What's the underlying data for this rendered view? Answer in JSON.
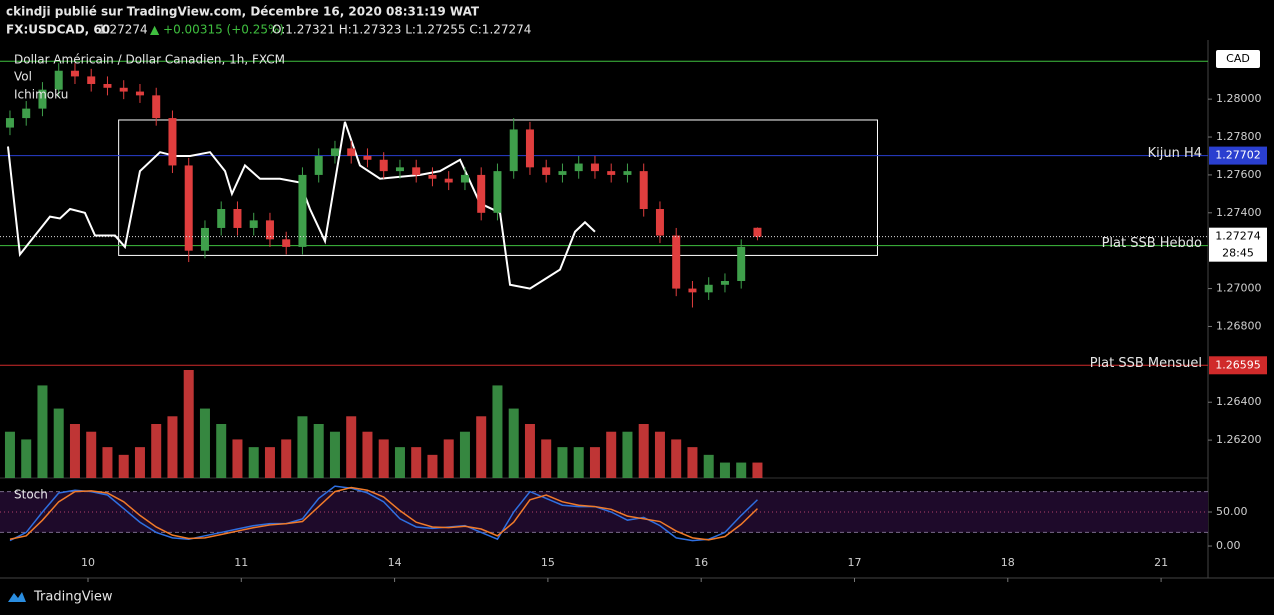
{
  "header": {
    "line1": "ckindji publié sur TradingView.com, Décembre 16, 2020 08:31:19 WAT",
    "symbol": "FX:USDCAD, 60",
    "price": "1.27274",
    "change": "▲ +0.00315 (+0.25%)",
    "ohlc": "O:1.27321 H:1.27323 L:1.27255 C:1.27274"
  },
  "chart_data": {
    "type": "candlestick",
    "title": "Dollar Américain / Dollar Canadien, 1h, FXCM",
    "legend": [
      "Vol",
      "Ichimoku"
    ],
    "currency": "CAD",
    "up_color": "#3f9f4b",
    "down_color": "#e03e3e",
    "xlim": [
      -0.574,
      7.306
    ],
    "xticks": [
      {
        "value": 0,
        "label": "10"
      },
      {
        "value": 1,
        "label": "11"
      },
      {
        "value": 2,
        "label": "14"
      },
      {
        "value": 3,
        "label": "15"
      },
      {
        "value": 4,
        "label": "16"
      },
      {
        "value": 5,
        "label": "17"
      },
      {
        "value": 6,
        "label": "18"
      },
      {
        "value": 7,
        "label": "21"
      }
    ],
    "ylim": [
      1.26,
      1.2827
    ],
    "yticks": [
      {
        "value": 1.28,
        "label": "1.28000"
      },
      {
        "value": 1.278,
        "label": "1.27800"
      },
      {
        "value": 1.276,
        "label": "1.27600"
      },
      {
        "value": 1.274,
        "label": "1.27400"
      },
      {
        "value": 1.27,
        "label": "1.27000"
      },
      {
        "value": 1.268,
        "label": "1.26800"
      },
      {
        "value": 1.264,
        "label": "1.26400"
      },
      {
        "value": 1.262,
        "label": "1.26200"
      }
    ],
    "x": [
      -0.509,
      -0.403,
      -0.297,
      -0.191,
      -0.085,
      0.021,
      0.127,
      0.233,
      0.339,
      0.445,
      0.551,
      0.657,
      0.763,
      0.869,
      0.975,
      1.081,
      1.187,
      1.293,
      1.399,
      1.505,
      1.611,
      1.717,
      1.823,
      1.929,
      2.035,
      2.141,
      2.247,
      2.353,
      2.459,
      2.565,
      2.671,
      2.777,
      2.883,
      2.989,
      3.095,
      3.201,
      3.307,
      3.413,
      3.519,
      3.625,
      3.731,
      3.837,
      3.943,
      4.049,
      4.155,
      4.261,
      4.367
    ],
    "open": [
      1.2785,
      1.279,
      1.2795,
      1.2805,
      1.2815,
      1.2812,
      1.2808,
      1.2806,
      1.2804,
      1.2802,
      1.279,
      1.2765,
      1.272,
      1.2732,
      1.2742,
      1.2732,
      1.2736,
      1.2726,
      1.2722,
      1.276,
      1.277,
      1.2774,
      1.277,
      1.2768,
      1.2762,
      1.2764,
      1.276,
      1.2758,
      1.2756,
      1.276,
      1.274,
      1.2762,
      1.2784,
      1.2764,
      1.276,
      1.2762,
      1.2766,
      1.2762,
      1.276,
      1.2762,
      1.2742,
      1.2728,
      1.27,
      1.2698,
      1.2702,
      1.2704,
      1.27321
    ],
    "high": [
      1.2794,
      1.2799,
      1.2809,
      1.2819,
      1.2819,
      1.2816,
      1.2812,
      1.281,
      1.2808,
      1.2806,
      1.2794,
      1.2769,
      1.2736,
      1.2746,
      1.2746,
      1.274,
      1.274,
      1.273,
      1.2764,
      1.2774,
      1.2778,
      1.2778,
      1.2774,
      1.2772,
      1.2768,
      1.2768,
      1.2764,
      1.2762,
      1.2764,
      1.2764,
      1.2766,
      1.279,
      1.2788,
      1.2768,
      1.2766,
      1.277,
      1.277,
      1.2766,
      1.2766,
      1.2766,
      1.2746,
      1.2732,
      1.2704,
      1.2706,
      1.2708,
      1.2726,
      1.27323
    ],
    "low": [
      1.2781,
      1.2786,
      1.2791,
      1.2801,
      1.2808,
      1.2804,
      1.2802,
      1.28,
      1.2798,
      1.2786,
      1.2761,
      1.2714,
      1.2716,
      1.2728,
      1.2728,
      1.2728,
      1.2722,
      1.2718,
      1.2718,
      1.2756,
      1.2766,
      1.2766,
      1.2764,
      1.2758,
      1.2758,
      1.2756,
      1.2754,
      1.2752,
      1.2752,
      1.2736,
      1.2736,
      1.2758,
      1.276,
      1.2756,
      1.2756,
      1.2758,
      1.2758,
      1.2756,
      1.2756,
      1.2738,
      1.2724,
      1.2696,
      1.269,
      1.2694,
      1.2698,
      1.27,
      1.27255
    ],
    "close": [
      1.279,
      1.2795,
      1.2805,
      1.2815,
      1.2812,
      1.2808,
      1.2806,
      1.2804,
      1.2802,
      1.279,
      1.2765,
      1.272,
      1.2732,
      1.2742,
      1.2732,
      1.2736,
      1.2726,
      1.2722,
      1.276,
      1.277,
      1.2774,
      1.277,
      1.2768,
      1.2762,
      1.2764,
      1.276,
      1.2758,
      1.2756,
      1.276,
      1.274,
      1.2762,
      1.2784,
      1.2764,
      1.276,
      1.2762,
      1.2766,
      1.2762,
      1.276,
      1.2762,
      1.2742,
      1.2728,
      1.27,
      1.2698,
      1.2702,
      1.2704,
      1.2722,
      1.27274
    ],
    "volume": [
      30,
      25,
      60,
      45,
      35,
      30,
      20,
      15,
      20,
      35,
      40,
      70,
      45,
      35,
      25,
      20,
      20,
      25,
      40,
      35,
      30,
      40,
      30,
      25,
      20,
      20,
      15,
      25,
      30,
      40,
      60,
      45,
      35,
      25,
      20,
      20,
      20,
      30,
      30,
      35,
      30,
      25,
      20,
      15,
      10,
      10,
      10
    ],
    "chikou": {
      "color": "#ffffff",
      "x": [
        -0.522,
        -0.444,
        -0.346,
        -0.248,
        -0.183,
        -0.117,
        -0.02,
        0.046,
        0.176,
        0.241,
        0.339,
        0.47,
        0.568,
        0.666,
        0.796,
        0.894,
        0.939,
        1.024,
        1.122,
        1.252,
        1.383,
        1.448,
        1.546,
        1.676,
        1.774,
        1.905,
        2.166,
        2.296,
        2.427,
        2.557,
        2.688,
        2.753,
        2.883,
        2.981,
        3.079,
        3.177,
        3.242,
        3.307
      ],
      "values": [
        1.2775,
        1.2718,
        1.2728,
        1.2738,
        1.2737,
        1.2742,
        1.274,
        1.2728,
        1.2728,
        1.2722,
        1.2762,
        1.2772,
        1.277,
        1.277,
        1.2772,
        1.2762,
        1.275,
        1.2765,
        1.2758,
        1.2758,
        1.2756,
        1.2742,
        1.2725,
        1.2788,
        1.2765,
        1.2758,
        1.276,
        1.2762,
        1.2768,
        1.2745,
        1.274,
        1.2702,
        1.27,
        1.2705,
        1.271,
        1.273,
        1.2735,
        1.273
      ]
    },
    "box": {
      "x": [
        0.2,
        5.15
      ],
      "y": [
        1.27175,
        1.2789
      ],
      "color": "#ffffff"
    },
    "levels": [
      {
        "value": 1.282,
        "color": "#3fbf3f"
      },
      {
        "value": 1.27702,
        "color": "#2a3fd0",
        "label": "Kijun H4"
      },
      {
        "value": 1.27227,
        "color": "#3fbf3f",
        "label": "Plat SSB Hebdo"
      },
      {
        "value": 1.26595,
        "color": "#d02a2a",
        "label": "Plat SSB Mensuel"
      }
    ],
    "last": {
      "value": 1.27274,
      "countdown": "28:45"
    },
    "stoch": {
      "title": "Stoch",
      "ylim": [
        -47,
        100
      ],
      "yticks": [
        {
          "value": 50,
          "label": "50.00"
        },
        {
          "value": 0,
          "label": "0.00"
        }
      ],
      "bands": [
        80,
        20
      ],
      "series": [
        {
          "color": "#2f6fe0",
          "values": [
            8,
            20,
            50,
            78,
            82,
            80,
            75,
            55,
            35,
            20,
            12,
            10,
            15,
            20,
            25,
            30,
            33,
            33,
            40,
            70,
            88,
            85,
            78,
            65,
            40,
            28,
            26,
            28,
            30,
            20,
            10,
            50,
            80,
            70,
            60,
            58,
            58,
            50,
            38,
            42,
            30,
            12,
            8,
            10,
            20,
            45,
            68
          ]
        },
        {
          "color": "#f07a2a",
          "values": [
            10,
            15,
            38,
            65,
            80,
            81,
            78,
            65,
            45,
            28,
            16,
            11,
            12,
            17,
            22,
            27,
            31,
            33,
            36,
            58,
            80,
            86,
            82,
            72,
            52,
            35,
            28,
            27,
            29,
            25,
            15,
            35,
            68,
            75,
            65,
            60,
            58,
            54,
            44,
            40,
            36,
            22,
            12,
            9,
            14,
            32,
            55
          ]
        }
      ]
    }
  },
  "footer": {
    "brand": "TradingView"
  }
}
